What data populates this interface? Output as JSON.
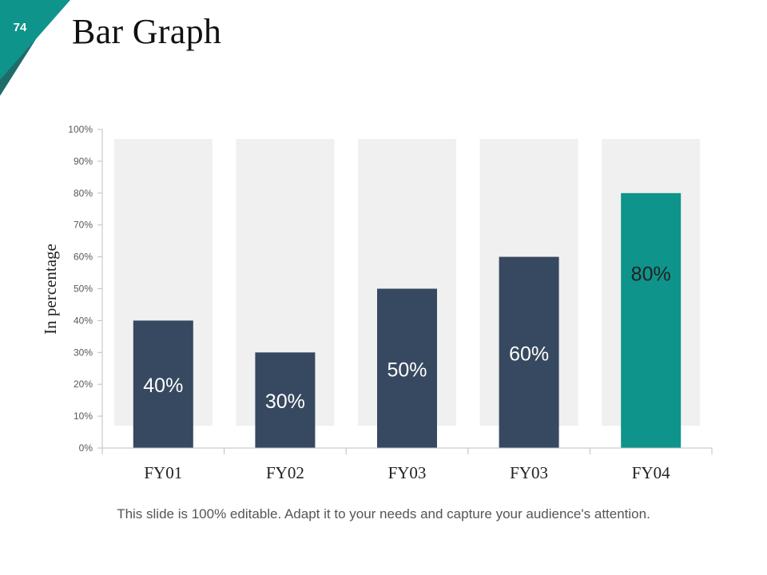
{
  "slide": {
    "number": "74",
    "title": "Bar Graph",
    "footer": "This slide is 100% editable. Adapt it to your needs and capture your audience's attention."
  },
  "colors": {
    "accent": "#0e948a",
    "bar": "#374960",
    "band": "#f0f0f0",
    "badge_dark": "#1f6b6a",
    "axis": "#bfbfbf",
    "tick_text": "#595959"
  },
  "chart_data": {
    "type": "bar",
    "title": "",
    "xlabel": "",
    "ylabel": "In percentage",
    "categories": [
      "FY01",
      "FY02",
      "FY03",
      "FY03",
      "FY04"
    ],
    "values": [
      40,
      30,
      50,
      60,
      80
    ],
    "data_labels": [
      "40%",
      "30%",
      "50%",
      "60%",
      "80%"
    ],
    "highlight_index": 4,
    "ylim": [
      0,
      100
    ],
    "yticks": [
      0,
      10,
      20,
      30,
      40,
      50,
      60,
      70,
      80,
      90,
      100
    ],
    "ytick_labels": [
      "0%",
      "10%",
      "20%",
      "30%",
      "40%",
      "50%",
      "60%",
      "70%",
      "80%",
      "90%",
      "100%"
    ],
    "background_band_value": 97,
    "background_band_bottom": 7
  }
}
